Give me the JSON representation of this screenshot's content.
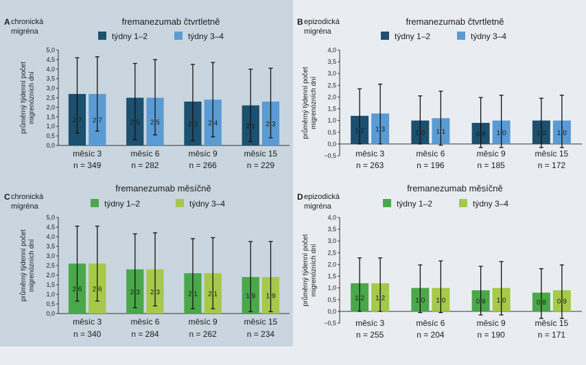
{
  "chart_data": [
    {
      "type": "bar",
      "letter": "A",
      "group_label": [
        "chronická",
        "migréna"
      ],
      "title": "fremanezumab čtvrtletně",
      "ylabel": [
        "průměrný týdenní počet",
        "migrenózních dní"
      ],
      "ylim": [
        0,
        5
      ],
      "yticks": [
        "0,0",
        "0,5",
        "1,0",
        "1,5",
        "2,0",
        "2,5",
        "3,0",
        "3,5",
        "4,0",
        "4,5",
        "5,0"
      ],
      "categories": [
        "měsíc 3",
        "měsíc 6",
        "měsíc 9",
        "měsíc 15"
      ],
      "n_labels": [
        "n = 349",
        "n = 282",
        "n = 266",
        "n = 229"
      ],
      "series": [
        {
          "name": "týdny 1–2",
          "color": "#1d4f6e",
          "values": [
            2.7,
            2.5,
            2.3,
            2.1
          ],
          "labels": [
            "2,7",
            "2,5",
            "2,3",
            "2,1"
          ],
          "err_low": [
            0.65,
            0.3,
            0.25,
            0.2
          ],
          "err_high": [
            4.6,
            4.3,
            4.25,
            4.0
          ]
        },
        {
          "name": "týdny 3–4",
          "color": "#5b9bd3",
          "values": [
            2.7,
            2.5,
            2.4,
            2.3
          ],
          "labels": [
            "2,7",
            "2,5",
            "2,4",
            "2,3"
          ],
          "err_low": [
            0.75,
            0.55,
            0.45,
            0.4
          ],
          "err_high": [
            4.65,
            4.5,
            4.35,
            4.05
          ]
        }
      ]
    },
    {
      "type": "bar",
      "letter": "B",
      "group_label": [
        "epizodická",
        "migréna"
      ],
      "title": "fremanezumab čtvrtletně",
      "ylabel": [
        "průměrný týdenní počet",
        "migrenózních dní"
      ],
      "ylim": [
        -0.5,
        4
      ],
      "yticks": [
        "−0,5",
        "0,0",
        "0,5",
        "1,0",
        "1,5",
        "2,0",
        "2,5",
        "3,0",
        "3,5",
        "4,0"
      ],
      "categories": [
        "měsíc 3",
        "měsíc 6",
        "měsíc 9",
        "měsíc 15"
      ],
      "n_labels": [
        "n = 263",
        "n = 196",
        "n = 185",
        "n = 172"
      ],
      "series": [
        {
          "name": "týdny 1–2",
          "color": "#1d4f6e",
          "values": [
            1.2,
            1.0,
            0.9,
            1.0
          ],
          "labels": [
            "1,2",
            "1,0",
            "0,9",
            "1,0"
          ],
          "err_low": [
            0.0,
            0.0,
            -0.15,
            -0.15
          ],
          "err_high": [
            2.35,
            2.05,
            1.98,
            1.95
          ]
        },
        {
          "name": "týdny 3–4",
          "color": "#5b9bd3",
          "values": [
            1.3,
            1.1,
            1.0,
            1.0
          ],
          "labels": [
            "1,3",
            "1,1",
            "1,0",
            "1,0"
          ],
          "err_low": [
            0.0,
            -0.05,
            -0.15,
            -0.15
          ],
          "err_high": [
            2.55,
            2.25,
            2.08,
            2.08
          ]
        }
      ]
    },
    {
      "type": "bar",
      "letter": "C",
      "group_label": [
        "chronická",
        "migréna"
      ],
      "title": "fremanezumab měsíčně",
      "ylabel": [
        "průměrný týdenní počet",
        "migrenózních dní"
      ],
      "ylim": [
        0,
        5
      ],
      "yticks": [
        "0,0",
        "0,5",
        "1,0",
        "1,5",
        "2,0",
        "2,5",
        "3,0",
        "3,5",
        "4,0",
        "4,5",
        "5,0"
      ],
      "categories": [
        "měsíc 3",
        "měsíc 6",
        "měsíc 9",
        "měsíc 15"
      ],
      "n_labels": [
        "n = 340",
        "n = 284",
        "n = 262",
        "n = 234"
      ],
      "series": [
        {
          "name": "týdny 1–2",
          "color": "#4aa84a",
          "values": [
            2.6,
            2.3,
            2.1,
            1.9
          ],
          "labels": [
            "2,6",
            "2,3",
            "2,1",
            "1,9"
          ],
          "err_low": [
            0.65,
            0.3,
            0.25,
            0.1
          ],
          "err_high": [
            4.55,
            4.15,
            3.9,
            3.75
          ]
        },
        {
          "name": "týdny 3–4",
          "color": "#a5c94a",
          "values": [
            2.6,
            2.3,
            2.1,
            1.9
          ],
          "labels": [
            "2,6",
            "2,3",
            "2,1",
            "1,9"
          ],
          "err_low": [
            0.65,
            0.4,
            0.25,
            0.1
          ],
          "err_high": [
            4.55,
            4.2,
            3.95,
            3.75
          ]
        }
      ]
    },
    {
      "type": "bar",
      "letter": "D",
      "group_label": [
        "epizodická",
        "migréna"
      ],
      "title": "fremanezumab měsíčně",
      "ylabel": [
        "průměrný týdenní počet",
        "migrenózních dní"
      ],
      "ylim": [
        -0.5,
        4
      ],
      "yticks": [
        "−0,5",
        "0,0",
        "0,5",
        "1,0",
        "1,5",
        "2,0",
        "2,5",
        "3,0",
        "3,5",
        "4,0"
      ],
      "categories": [
        "měsíc 3",
        "měsíc 6",
        "měsíc 9",
        "měsíc 15"
      ],
      "n_labels": [
        "n = 255",
        "n = 204",
        "n = 190",
        "n = 171"
      ],
      "series": [
        {
          "name": "týdny 1–2",
          "color": "#4aa84a",
          "values": [
            1.2,
            1.0,
            0.9,
            0.8
          ],
          "labels": [
            "1,2",
            "1,0",
            "0,9",
            "0,8"
          ],
          "err_low": [
            0.0,
            -0.05,
            -0.15,
            -0.3
          ],
          "err_high": [
            2.28,
            1.98,
            1.92,
            1.82
          ]
        },
        {
          "name": "týdny 3–4",
          "color": "#a5c94a",
          "values": [
            1.2,
            1.0,
            1.0,
            0.9
          ],
          "labels": [
            "1,2",
            "1,0",
            "1,0",
            "0,9"
          ],
          "err_low": [
            0.0,
            -0.05,
            -0.15,
            -0.3
          ],
          "err_high": [
            2.28,
            2.15,
            2.12,
            1.98
          ]
        }
      ]
    }
  ]
}
